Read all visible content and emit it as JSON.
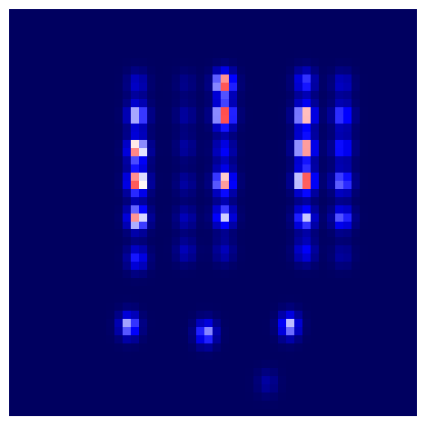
{
  "chart_data": {
    "type": "heatmap",
    "xlim": [
      0,
      50
    ],
    "ylim": [
      0,
      50
    ],
    "zlim": [
      0,
      1
    ],
    "tick_labels": false,
    "grid": false,
    "spots": [
      {
        "x": 15.8,
        "y": 40.9,
        "value": 0.25
      },
      {
        "x": 15.8,
        "y": 37.0,
        "value": 0.65
      },
      {
        "x": 15.8,
        "y": 32.8,
        "value": 0.9
      },
      {
        "x": 15.8,
        "y": 28.9,
        "value": 1.0
      },
      {
        "x": 15.8,
        "y": 24.4,
        "value": 0.85
      },
      {
        "x": 15.8,
        "y": 19.4,
        "value": 0.4
      },
      {
        "x": 21.7,
        "y": 40.9,
        "value": 0.1
      },
      {
        "x": 21.7,
        "y": 37.0,
        "value": 0.15
      },
      {
        "x": 21.7,
        "y": 33.1,
        "value": 0.15
      },
      {
        "x": 21.7,
        "y": 28.7,
        "value": 0.15
      },
      {
        "x": 21.7,
        "y": 24.4,
        "value": 0.2
      },
      {
        "x": 21.7,
        "y": 20.3,
        "value": 0.2
      },
      {
        "x": 26.4,
        "y": 40.9,
        "value": 0.95
      },
      {
        "x": 26.4,
        "y": 37.0,
        "value": 1.0
      },
      {
        "x": 26.4,
        "y": 32.8,
        "value": 0.35
      },
      {
        "x": 26.4,
        "y": 28.9,
        "value": 0.85
      },
      {
        "x": 26.4,
        "y": 24.6,
        "value": 0.6
      },
      {
        "x": 26.4,
        "y": 20.3,
        "value": 0.2
      },
      {
        "x": 36.3,
        "y": 41.1,
        "value": 0.45
      },
      {
        "x": 36.3,
        "y": 37.0,
        "value": 0.85
      },
      {
        "x": 36.3,
        "y": 33.0,
        "value": 0.9
      },
      {
        "x": 36.3,
        "y": 29.0,
        "value": 1.0
      },
      {
        "x": 36.3,
        "y": 24.4,
        "value": 0.6
      },
      {
        "x": 36.3,
        "y": 20.3,
        "value": 0.35
      },
      {
        "x": 40.9,
        "y": 40.9,
        "value": 0.25
      },
      {
        "x": 40.9,
        "y": 37.0,
        "value": 0.5
      },
      {
        "x": 40.9,
        "y": 33.0,
        "value": 0.45
      },
      {
        "x": 40.9,
        "y": 28.9,
        "value": 0.55
      },
      {
        "x": 40.9,
        "y": 24.4,
        "value": 0.5
      },
      {
        "x": 40.9,
        "y": 19.8,
        "value": 0.15
      },
      {
        "x": 14.8,
        "y": 11.2,
        "value": 0.6
      },
      {
        "x": 24.2,
        "y": 10.3,
        "value": 0.55
      },
      {
        "x": 34.4,
        "y": 11.2,
        "value": 0.6
      },
      {
        "x": 31.7,
        "y": 4.2,
        "value": 0.15
      }
    ]
  }
}
